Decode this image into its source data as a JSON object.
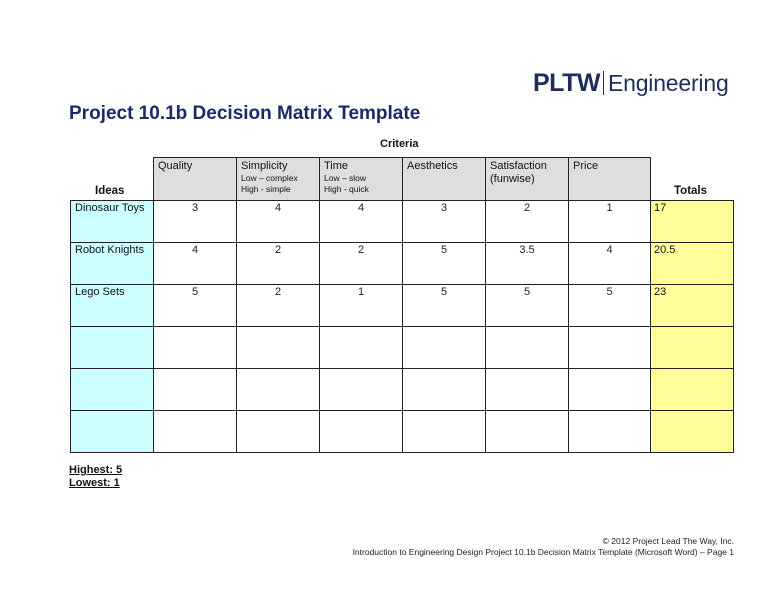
{
  "logo": {
    "brand": "PLTW",
    "division": "Engineering"
  },
  "title": "Project 10.1b Decision Matrix Template",
  "table": {
    "criteria_label": "Criteria",
    "ideas_label": "Ideas",
    "totals_label": "Totals",
    "columns": [
      {
        "label": "Quality",
        "sub1": "",
        "sub2": ""
      },
      {
        "label": "Simplicity",
        "sub1": "Low – complex",
        "sub2": "High - simple"
      },
      {
        "label": "Time",
        "sub1": "Low – slow",
        "sub2": "High - quick"
      },
      {
        "label": "Aesthetics",
        "sub1": "",
        "sub2": ""
      },
      {
        "label": "Satisfaction (funwise)",
        "sub1": "",
        "sub2": ""
      },
      {
        "label": "Price",
        "sub1": "",
        "sub2": ""
      }
    ],
    "rows": [
      {
        "idea": "Dinosaur Toys",
        "scores": [
          "3",
          "4",
          "4",
          "3",
          "2",
          "1"
        ],
        "total": "17"
      },
      {
        "idea": "Robot Knights",
        "scores": [
          "4",
          "2",
          "2",
          "5",
          "3.5",
          "4"
        ],
        "total": "20.5"
      },
      {
        "idea": "Lego Sets",
        "scores": [
          "5",
          "2",
          "1",
          "5",
          "5",
          "5"
        ],
        "total": "23"
      },
      {
        "idea": "",
        "scores": [
          "",
          "",
          "",
          "",
          "",
          ""
        ],
        "total": ""
      },
      {
        "idea": "",
        "scores": [
          "",
          "",
          "",
          "",
          "",
          ""
        ],
        "total": ""
      },
      {
        "idea": "",
        "scores": [
          "",
          "",
          "",
          "",
          "",
          ""
        ],
        "total": ""
      }
    ]
  },
  "legend": {
    "highest": "Highest: 5",
    "lowest": "Lowest: 1"
  },
  "footer": {
    "copyright": "© 2012 Project Lead The Way, Inc.",
    "page_info": "Introduction to Engineering Design Project 10.1b Decision Matrix Template (Microsoft Word) – Page 1"
  },
  "colors": {
    "title": "#1b2a6b",
    "ideas_fill": "#ccffff",
    "totals_fill": "#ffff99",
    "header_fill": "#dedede"
  }
}
